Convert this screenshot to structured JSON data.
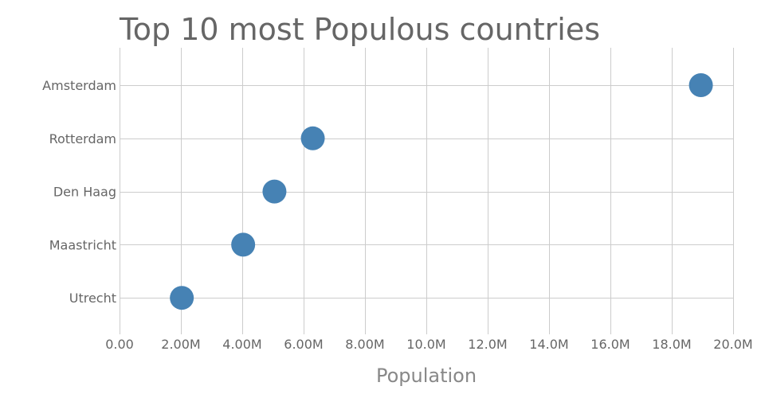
{
  "chart_data": {
    "type": "scatter",
    "title": "Top 10 most Populous countries",
    "xlabel": "Population",
    "ylabel": "",
    "categories": [
      "Amsterdam",
      "Rotterdam",
      "Den Haag",
      "Maastricht",
      "Utrecht"
    ],
    "values": [
      18950000,
      6300000,
      5050000,
      4030000,
      2030000
    ],
    "xlim": [
      0,
      20000000
    ],
    "x_ticks": [
      0,
      2000000,
      4000000,
      6000000,
      8000000,
      10000000,
      12000000,
      14000000,
      16000000,
      18000000,
      20000000
    ],
    "x_tick_labels": [
      "0.00",
      "2.00M",
      "4.00M",
      "6.00M",
      "8.00M",
      "10.0M",
      "12.0M",
      "14.0M",
      "16.0M",
      "18.0M",
      "20.0M"
    ],
    "grid": true,
    "marker_color": "#4682b4"
  }
}
